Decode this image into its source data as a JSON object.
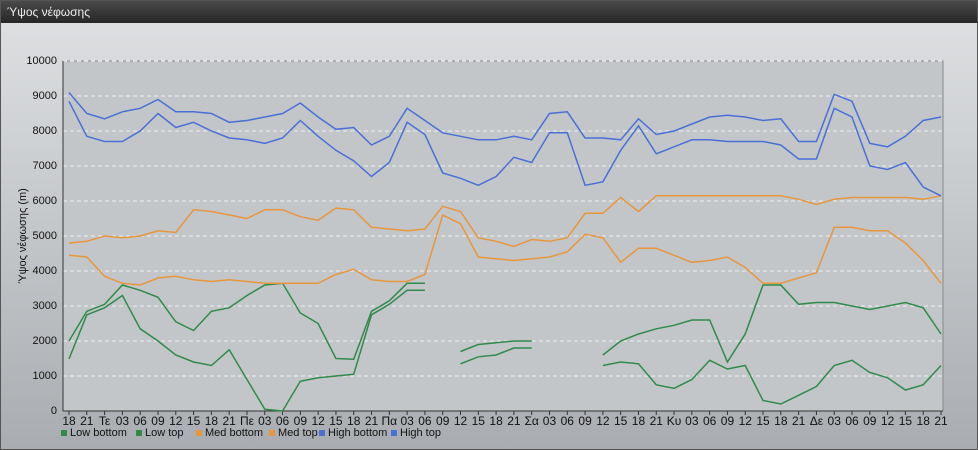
{
  "chart_data": {
    "type": "line",
    "title": "Ύψος νέφωσης",
    "y_label": "Ύψος νέφωσης (m)",
    "categories": [
      "18",
      "21",
      "Τε",
      "03",
      "06",
      "09",
      "12",
      "15",
      "18",
      "21",
      "Πε",
      "03",
      "06",
      "09",
      "12",
      "15",
      "18",
      "21",
      "Πα",
      "03",
      "06",
      "09",
      "12",
      "15",
      "18",
      "21",
      "Σα",
      "03",
      "06",
      "09",
      "12",
      "15",
      "18",
      "21",
      "Κυ",
      "03",
      "06",
      "09",
      "12",
      "15",
      "18",
      "21",
      "Δε",
      "03",
      "06",
      "09",
      "12",
      "15",
      "18",
      "21"
    ],
    "ylim": [
      0,
      10000
    ],
    "yticks": [
      0,
      1000,
      2000,
      3000,
      4000,
      5000,
      6000,
      7000,
      8000,
      9000,
      10000
    ],
    "grid": true,
    "series": [
      {
        "name": "Low bottom",
        "color": "#2f8a4c",
        "values": [
          1490,
          2750,
          2950,
          3300,
          2350,
          2000,
          1600,
          1400,
          1300,
          1750,
          900,
          50,
          0,
          850,
          950,
          1000,
          1050,
          2750,
          3050,
          3450,
          3450,
          null,
          1350,
          1550,
          1600,
          1800,
          1800,
          null,
          null,
          null,
          1300,
          1400,
          1350,
          750,
          650,
          900,
          1450,
          1200,
          1300,
          300,
          200,
          450,
          700,
          1300,
          1450,
          1100,
          950,
          600,
          750,
          1300
        ]
      },
      {
        "name": "Low top",
        "color": "#2f8a4c",
        "values": [
          2000,
          2850,
          3050,
          3600,
          3450,
          3250,
          2550,
          2300,
          2850,
          2950,
          3300,
          3600,
          3650,
          2800,
          2500,
          1500,
          1480,
          2850,
          3150,
          3650,
          3650,
          null,
          1700,
          1900,
          1950,
          2000,
          2000,
          null,
          null,
          null,
          1600,
          2000,
          2200,
          2350,
          2450,
          2600,
          2600,
          1400,
          2200,
          3600,
          3600,
          3050,
          3100,
          3100,
          3000,
          2900,
          3000,
          3100,
          2950,
          2200
        ]
      },
      {
        "name": "Med bottom",
        "color": "#e8963c",
        "values": [
          4450,
          4400,
          3850,
          3650,
          3600,
          3800,
          3850,
          3750,
          3700,
          3750,
          3700,
          3650,
          3650,
          3650,
          3650,
          3900,
          4050,
          3750,
          3700,
          3700,
          3900,
          5600,
          5350,
          4400,
          4350,
          4300,
          4350,
          4400,
          4550,
          5050,
          4950,
          4250,
          4650,
          4650,
          4450,
          4250,
          4300,
          4400,
          4100,
          3650,
          3650,
          3800,
          3950,
          5250,
          5250,
          5150,
          5150,
          4800,
          4300,
          3650
        ]
      },
      {
        "name": "Med top",
        "color": "#e8963c",
        "values": [
          4800,
          4850,
          5000,
          4950,
          5000,
          5150,
          5100,
          5750,
          5700,
          5600,
          5500,
          5750,
          5750,
          5550,
          5450,
          5800,
          5750,
          5250,
          5200,
          5150,
          5200,
          5850,
          5700,
          4950,
          4850,
          4700,
          4900,
          4850,
          4950,
          5650,
          5650,
          6100,
          5700,
          6150,
          6150,
          6150,
          6150,
          6150,
          6150,
          6150,
          6150,
          6050,
          5900,
          6050,
          6100,
          6100,
          6100,
          6100,
          6050,
          6150
        ]
      },
      {
        "name": "High bottom",
        "color": "#4a6fd6",
        "values": [
          8850,
          7850,
          7700,
          7700,
          8000,
          8500,
          8100,
          8250,
          8000,
          7800,
          7750,
          7650,
          7800,
          8300,
          7850,
          7450,
          7150,
          6700,
          7100,
          8250,
          7900,
          6800,
          6650,
          6450,
          6700,
          7250,
          7100,
          7950,
          7950,
          6450,
          6550,
          7450,
          8150,
          7350,
          7550,
          7750,
          7750,
          7700,
          7700,
          7700,
          7600,
          7200,
          7200,
          8650,
          8400,
          7000,
          6900,
          7100,
          6400,
          6150
        ]
      },
      {
        "name": "High top",
        "color": "#4a6fd6",
        "values": [
          9100,
          8500,
          8350,
          8550,
          8650,
          8900,
          8550,
          8550,
          8500,
          8250,
          8300,
          8400,
          8500,
          8800,
          8400,
          8050,
          8100,
          7600,
          7850,
          8650,
          8300,
          7950,
          7850,
          7750,
          7750,
          7850,
          7750,
          8500,
          8550,
          7800,
          7800,
          7750,
          8350,
          7900,
          8000,
          8200,
          8400,
          8450,
          8400,
          8300,
          8350,
          7700,
          7700,
          9050,
          8850,
          7650,
          7550,
          7850,
          8300,
          8400
        ]
      }
    ]
  }
}
